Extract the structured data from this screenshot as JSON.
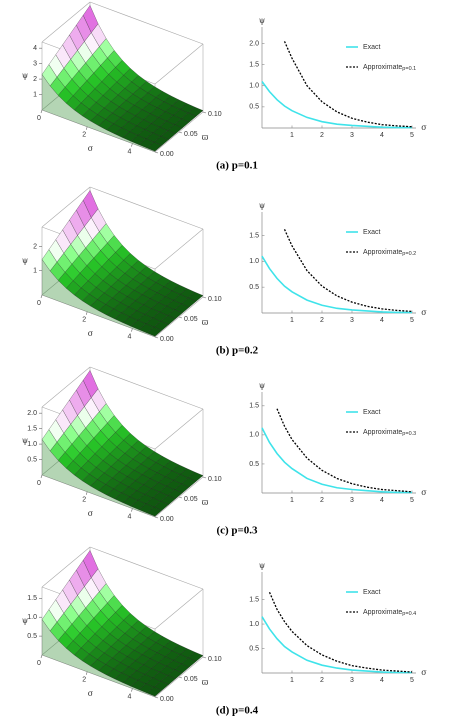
{
  "chart_data": [
    {
      "type": "line",
      "caption": "(a) p=0.1",
      "xlabel": "σ",
      "ylabel": "ψ",
      "legend": "upper right",
      "x": [
        0,
        0.25,
        0.5,
        0.75,
        1,
        1.5,
        2,
        2.5,
        3,
        3.5,
        4,
        4.5,
        5
      ],
      "xlim": [
        0,
        5
      ],
      "xticks": [
        1,
        2,
        3,
        4,
        5
      ],
      "ylim": [
        0,
        2.2
      ],
      "yticks": [
        0.5,
        {
          "value": 1,
          "label": "1.0"
        },
        1.5,
        {
          "value": 2,
          "label": "2.0"
        }
      ],
      "series": [
        {
          "name": "Exact",
          "color": "#3fe3ea",
          "style": "solid",
          "values": [
            1.1,
            0.86,
            0.67,
            0.52,
            0.41,
            0.25,
            0.15,
            0.09,
            0.06,
            0.04,
            0.02,
            0.01,
            0.01
          ]
        },
        {
          "name": "Approximate",
          "subscript": "p=0.1",
          "color": "#000000",
          "style": "dotted",
          "values": [
            null,
            null,
            null,
            2.05,
            1.65,
            1.0,
            0.62,
            0.38,
            0.23,
            0.14,
            0.08,
            0.05,
            0.03
          ]
        }
      ]
    },
    {
      "type": "line",
      "caption": "(b) p=0.2",
      "xlabel": "σ",
      "ylabel": "ψ",
      "legend": "upper right",
      "x": [
        0,
        0.25,
        0.5,
        0.75,
        1,
        1.5,
        2,
        2.5,
        3,
        3.5,
        4,
        4.5,
        5
      ],
      "xlim": [
        0,
        5
      ],
      "xticks": [
        1,
        2,
        3,
        4,
        5
      ],
      "ylim": [
        0,
        1.8
      ],
      "yticks": [
        0.5,
        {
          "value": 1,
          "label": "1.0"
        },
        1.5
      ],
      "series": [
        {
          "name": "Exact",
          "color": "#3fe3ea",
          "style": "solid",
          "values": [
            1.1,
            0.86,
            0.67,
            0.52,
            0.41,
            0.25,
            0.15,
            0.09,
            0.06,
            0.04,
            0.02,
            0.01,
            0.01
          ]
        },
        {
          "name": "Approximate",
          "subscript": "p=0.2",
          "color": "#000000",
          "style": "dotted",
          "values": [
            null,
            null,
            null,
            1.62,
            1.3,
            0.82,
            0.52,
            0.33,
            0.21,
            0.13,
            0.08,
            0.05,
            0.03
          ]
        }
      ]
    },
    {
      "type": "line",
      "caption": "(c) p=0.3",
      "xlabel": "σ",
      "ylabel": "ψ",
      "legend": "upper right",
      "x": [
        0,
        0.25,
        0.5,
        0.75,
        1,
        1.5,
        2,
        2.5,
        3,
        3.5,
        4,
        4.5,
        5
      ],
      "xlim": [
        0,
        5
      ],
      "xticks": [
        1,
        2,
        3,
        4,
        5
      ],
      "ylim": [
        0,
        1.6
      ],
      "yticks": [
        0.5,
        {
          "value": 1,
          "label": "1.0"
        },
        1.5
      ],
      "series": [
        {
          "name": "Exact",
          "color": "#3fe3ea",
          "style": "solid",
          "values": [
            1.12,
            0.87,
            0.68,
            0.53,
            0.42,
            0.25,
            0.15,
            0.09,
            0.06,
            0.04,
            0.02,
            0.01,
            0.01
          ]
        },
        {
          "name": "Approximate",
          "subscript": "p=0.3",
          "color": "#000000",
          "style": "dotted",
          "values": [
            null,
            null,
            1.45,
            1.15,
            0.92,
            0.6,
            0.39,
            0.25,
            0.16,
            0.1,
            0.06,
            0.04,
            0.02
          ]
        }
      ]
    },
    {
      "type": "line",
      "caption": "(d) p=0.4",
      "xlabel": "σ",
      "ylabel": "ψ",
      "legend": "upper right",
      "x": [
        0,
        0.25,
        0.5,
        0.75,
        1,
        1.5,
        2,
        2.5,
        3,
        3.5,
        4,
        4.5,
        5
      ],
      "xlim": [
        0,
        5
      ],
      "xticks": [
        1,
        2,
        3,
        4,
        5
      ],
      "ylim": [
        0,
        1.9
      ],
      "yticks": [
        0.5,
        {
          "value": 1,
          "label": "1.0"
        },
        1.5
      ],
      "series": [
        {
          "name": "Exact",
          "color": "#3fe3ea",
          "style": "solid",
          "values": [
            1.15,
            0.9,
            0.7,
            0.54,
            0.43,
            0.26,
            0.16,
            0.1,
            0.06,
            0.04,
            0.02,
            0.01,
            0.01
          ]
        },
        {
          "name": "Approximate",
          "subscript": "p=0.4",
          "color": "#000000",
          "style": "dotted",
          "values": [
            null,
            1.65,
            1.3,
            1.05,
            0.85,
            0.56,
            0.37,
            0.24,
            0.15,
            0.1,
            0.06,
            0.04,
            0.02
          ]
        }
      ]
    }
  ],
  "surfaces": [
    {
      "type": "surface",
      "xlabel": "σ",
      "ylabel": "ϖ",
      "zlabel": "ψ",
      "xlim": [
        0,
        5
      ],
      "ylim": [
        0,
        0.1
      ],
      "zlim": [
        0,
        4.4
      ],
      "xticks": [
        0,
        2,
        4
      ],
      "yticks": [
        {
          "value": 0,
          "label": "0.00"
        },
        {
          "value": 0.05,
          "label": "0.05"
        },
        {
          "value": 0.1,
          "label": "0.10"
        }
      ],
      "zticks": [
        1,
        2,
        3,
        4
      ]
    },
    {
      "type": "surface",
      "xlabel": "σ",
      "ylabel": "ϖ",
      "zlabel": "ψ",
      "xlim": [
        0,
        5
      ],
      "ylim": [
        0,
        0.1
      ],
      "zlim": [
        0,
        2.8
      ],
      "xticks": [
        0,
        2,
        4
      ],
      "yticks": [
        {
          "value": 0,
          "label": "0.00"
        },
        {
          "value": 0.05,
          "label": "0.05"
        },
        {
          "value": 0.1,
          "label": "0.10"
        }
      ],
      "zticks": [
        1,
        2
      ]
    },
    {
      "type": "surface",
      "xlabel": "σ",
      "ylabel": "ϖ",
      "zlabel": "ψ",
      "xlim": [
        0,
        5
      ],
      "ylim": [
        0,
        0.1
      ],
      "zlim": [
        0,
        2.2
      ],
      "xticks": [
        0,
        2,
        4
      ],
      "yticks": [
        {
          "value": 0,
          "label": "0.00"
        },
        {
          "value": 0.05,
          "label": "0.05"
        },
        {
          "value": 0.1,
          "label": "0.10"
        }
      ],
      "zticks": [
        0.5,
        {
          "value": 1,
          "label": "1.0"
        },
        1.5,
        {
          "value": 2,
          "label": "2.0"
        }
      ]
    },
    {
      "type": "surface",
      "xlabel": "σ",
      "ylabel": "ϖ",
      "zlabel": "ψ",
      "xlim": [
        0,
        5
      ],
      "ylim": [
        0,
        0.1
      ],
      "zlim": [
        0,
        1.8
      ],
      "xticks": [
        0,
        2,
        4
      ],
      "yticks": [
        {
          "value": 0,
          "label": "0.00"
        },
        {
          "value": 0.05,
          "label": "0.05"
        },
        {
          "value": 0.1,
          "label": "0.10"
        }
      ],
      "zticks": [
        0.5,
        {
          "value": 1,
          "label": "1.0"
        },
        1.5
      ]
    }
  ]
}
